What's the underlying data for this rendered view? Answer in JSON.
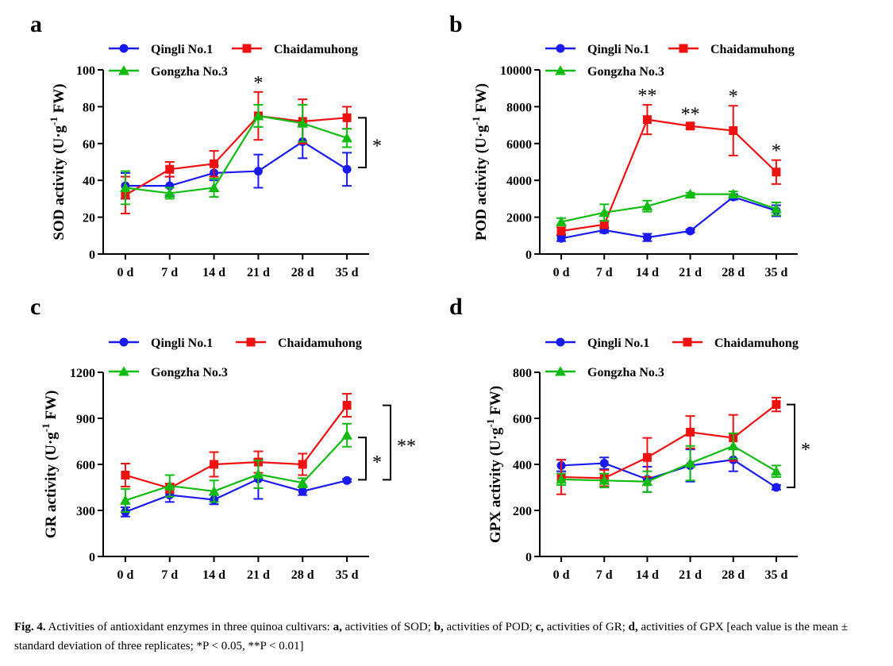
{
  "colors": {
    "Qingli No.1": "#1a1af0",
    "Chaidamuhong": "#ee1111",
    "Gongzha No.3": "#11bb11"
  },
  "caption": {
    "fig_label": "Fig. 4.",
    "text": " Activities of antioxidant enzymes in three quinoa cultivars: ",
    "a_label": "a,",
    "a_text": " activities of SOD; ",
    "b_label": "b,",
    "b_text": " activities of POD; ",
    "c_label": "c,",
    "c_text": " activities of GR; ",
    "d_label": "d,",
    "d_text": " activities of GPX [each value is the mean ± standard deviation of three replicates; *P < 0.05, **P < 0.01]"
  },
  "chart_data": [
    {
      "panel": "a",
      "type": "line",
      "ylabel_main": "SOD activity (U·g",
      "ylabel_sup": "-1",
      "ylabel_end": " FW)",
      "categories": [
        "0 d",
        "7 d",
        "14 d",
        "21 d",
        "28 d",
        "35 d"
      ],
      "ylim": [
        0,
        100
      ],
      "yticks": [
        0,
        20,
        40,
        60,
        80,
        100
      ],
      "series": [
        {
          "name": "Qingli No.1",
          "marker": "circle",
          "values": [
            37,
            37,
            44,
            45,
            61,
            46
          ],
          "errors": [
            7,
            5,
            4,
            9,
            9,
            9
          ]
        },
        {
          "name": "Chaidamuhong",
          "marker": "square",
          "values": [
            32,
            46,
            49,
            75,
            72,
            74
          ],
          "errors": [
            10,
            4,
            7,
            13,
            12,
            6
          ]
        },
        {
          "name": "Gongzha No.3",
          "marker": "triangle",
          "values": [
            36,
            33,
            36,
            75,
            71,
            63
          ],
          "errors": [
            9,
            3,
            5,
            6,
            10,
            5
          ]
        }
      ],
      "annotations": [
        {
          "type": "star",
          "label": "*",
          "category": "21 d"
        }
      ],
      "brackets": [
        {
          "label": "*",
          "from_value": 74,
          "to_value": 47
        }
      ]
    },
    {
      "panel": "b",
      "type": "line",
      "ylabel_main": "POD activity (U·g",
      "ylabel_sup": "-1",
      "ylabel_end": " FW)",
      "categories": [
        "0 d",
        "7 d",
        "14 d",
        "21 d",
        "28 d",
        "35 d"
      ],
      "ylim": [
        0,
        10000
      ],
      "yticks": [
        0,
        2000,
        4000,
        6000,
        8000,
        10000
      ],
      "series": [
        {
          "name": "Qingli No.1",
          "marker": "circle",
          "values": [
            850,
            1300,
            900,
            1250,
            3100,
            2350
          ],
          "errors": [
            150,
            150,
            200,
            80,
            150,
            300
          ]
        },
        {
          "name": "Chaidamuhong",
          "marker": "square",
          "values": [
            1250,
            1600,
            7300,
            6950,
            6700,
            4450
          ],
          "errors": [
            200,
            200,
            800,
            150,
            1350,
            650
          ]
        },
        {
          "name": "Gongzha No.3",
          "marker": "triangle",
          "values": [
            1750,
            2250,
            2600,
            3250,
            3250,
            2450
          ],
          "errors": [
            200,
            450,
            300,
            80,
            150,
            350
          ]
        }
      ],
      "annotations": [
        {
          "type": "star",
          "label": "**",
          "category": "14 d"
        },
        {
          "type": "star",
          "label": "**",
          "category": "21 d"
        },
        {
          "type": "star",
          "label": "*",
          "category": "28 d"
        },
        {
          "type": "star",
          "label": "*",
          "category": "35 d"
        }
      ],
      "brackets": []
    },
    {
      "panel": "c",
      "type": "line",
      "ylabel_main": "GR activity (U·g",
      "ylabel_sup": "-1",
      "ylabel_end": " FW)",
      "categories": [
        "0 d",
        "7 d",
        "14 d",
        "21 d",
        "28 d",
        "35 d"
      ],
      "ylim": [
        0,
        1200
      ],
      "yticks": [
        0,
        300,
        600,
        900,
        1200
      ],
      "series": [
        {
          "name": "Qingli No.1",
          "marker": "circle",
          "values": [
            290,
            400,
            370,
            505,
            425,
            495
          ],
          "errors": [
            30,
            45,
            30,
            130,
            25,
            10
          ]
        },
        {
          "name": "Chaidamuhong",
          "marker": "square",
          "values": [
            530,
            445,
            600,
            615,
            600,
            985
          ],
          "errors": [
            75,
            30,
            80,
            70,
            70,
            75
          ]
        },
        {
          "name": "Gongzha No.3",
          "marker": "triangle",
          "values": [
            365,
            460,
            425,
            535,
            480,
            790
          ],
          "errors": [
            75,
            70,
            70,
            90,
            30,
            75
          ]
        }
      ],
      "annotations": [],
      "brackets": [
        {
          "label": "*",
          "from_value": 775,
          "to_value": 500
        },
        {
          "label": "**",
          "from_value": 985,
          "to_value": 500
        }
      ]
    },
    {
      "panel": "d",
      "type": "line",
      "ylabel_main": "GPX activity (U·g",
      "ylabel_sup": "-1",
      "ylabel_end": " FW)",
      "categories": [
        "0 d",
        "7 d",
        "14 d",
        "21 d",
        "28 d",
        "35 d"
      ],
      "ylim": [
        0,
        800
      ],
      "yticks": [
        0,
        200,
        400,
        600,
        800
      ],
      "series": [
        {
          "name": "Qingli No.1",
          "marker": "circle",
          "values": [
            395,
            405,
            335,
            395,
            420,
            300
          ],
          "errors": [
            25,
            25,
            55,
            70,
            50,
            10
          ]
        },
        {
          "name": "Chaidamuhong",
          "marker": "square",
          "values": [
            345,
            340,
            430,
            540,
            515,
            660
          ],
          "errors": [
            75,
            35,
            85,
            70,
            100,
            30
          ]
        },
        {
          "name": "Gongzha No.3",
          "marker": "triangle",
          "values": [
            335,
            330,
            325,
            405,
            480,
            370
          ],
          "errors": [
            25,
            30,
            45,
            75,
            55,
            25
          ]
        }
      ],
      "annotations": [],
      "brackets": [
        {
          "label": "*",
          "from_value": 660,
          "to_value": 300
        }
      ]
    }
  ]
}
